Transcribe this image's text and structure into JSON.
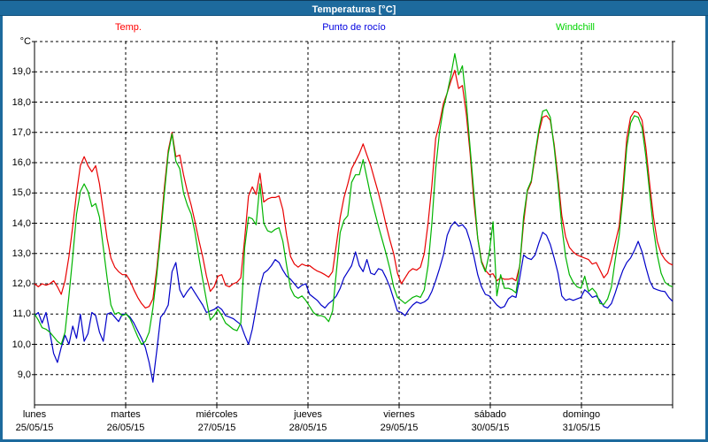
{
  "window": {
    "title": "Temperaturas [°C]"
  },
  "colors": {
    "frame": "#1d6a9d",
    "title_text": "#ffffff",
    "background": "#ffffff",
    "grid": "#000000",
    "axis_text": "#000000"
  },
  "chart_data": {
    "type": "line",
    "title": "Temperaturas [°C]",
    "unit_label": "°C",
    "grid": "dashed",
    "legend_position": "top",
    "ylim": [
      8,
      20
    ],
    "yticks": [
      {
        "value": 19,
        "label": "19,0"
      },
      {
        "value": 18,
        "label": "18,0"
      },
      {
        "value": 17,
        "label": "17,0"
      },
      {
        "value": 16,
        "label": "16,0"
      },
      {
        "value": 15,
        "label": "15,0"
      },
      {
        "value": 14,
        "label": "14,0"
      },
      {
        "value": 13,
        "label": "13,0"
      },
      {
        "value": 12,
        "label": "12,0"
      },
      {
        "value": 11,
        "label": "11,0"
      },
      {
        "value": 10,
        "label": "10,0"
      },
      {
        "value": 9,
        "label": "9,0"
      }
    ],
    "x_labels": [
      {
        "day": "lunes",
        "date": "25/05/15"
      },
      {
        "day": "martes",
        "date": "26/05/15"
      },
      {
        "day": "miércoles",
        "date": "27/05/15"
      },
      {
        "day": "jueves",
        "date": "28/05/15"
      },
      {
        "day": "viernes",
        "date": "29/05/15"
      },
      {
        "day": "sábado",
        "date": "30/05/15"
      },
      {
        "day": "domingo",
        "date": "31/05/15"
      }
    ],
    "hours_per_point": 1,
    "series": [
      {
        "name": "Temp.",
        "color": "#e80000",
        "legend_color": "#ff0000",
        "values": [
          12.0,
          11.9,
          12.0,
          11.95,
          12.0,
          12.1,
          11.9,
          11.65,
          12.1,
          12.9,
          13.9,
          15.0,
          15.9,
          16.2,
          15.9,
          15.7,
          15.9,
          15.3,
          14.4,
          13.5,
          12.85,
          12.55,
          12.4,
          12.3,
          12.3,
          12.1,
          11.8,
          11.55,
          11.35,
          11.2,
          11.25,
          11.5,
          12.5,
          13.8,
          15.2,
          16.4,
          17.0,
          16.2,
          16.25,
          15.6,
          15.05,
          14.6,
          14.05,
          13.45,
          12.9,
          12.25,
          11.75,
          11.9,
          12.25,
          12.3,
          11.95,
          11.9,
          12.0,
          12.05,
          12.2,
          13.5,
          14.9,
          15.2,
          14.95,
          15.65,
          14.7,
          14.8,
          14.85,
          14.85,
          14.9,
          14.45,
          13.6,
          12.9,
          12.65,
          12.55,
          12.65,
          12.6,
          12.6,
          12.5,
          12.42,
          12.37,
          12.3,
          12.22,
          12.4,
          13.3,
          14.2,
          14.85,
          15.3,
          15.8,
          16.05,
          16.3,
          16.62,
          16.25,
          15.9,
          15.45,
          15.0,
          14.5,
          13.95,
          13.45,
          13.0,
          12.35,
          12.0,
          12.2,
          12.4,
          12.5,
          12.45,
          12.55,
          13.0,
          14.0,
          15.25,
          16.8,
          17.3,
          17.95,
          18.3,
          18.7,
          19.05,
          18.45,
          18.55,
          17.6,
          16.3,
          14.7,
          13.5,
          12.75,
          12.45,
          12.3,
          12.33,
          12.1,
          12.2,
          12.15,
          12.15,
          12.18,
          12.1,
          12.6,
          14.0,
          15.05,
          15.35,
          16.2,
          17.0,
          17.5,
          17.55,
          17.4,
          16.6,
          15.5,
          14.25,
          13.55,
          13.2,
          13.05,
          12.95,
          12.9,
          12.85,
          12.8,
          12.65,
          12.7,
          12.45,
          12.2,
          12.35,
          12.8,
          13.35,
          13.9,
          15.2,
          16.8,
          17.5,
          17.7,
          17.65,
          17.4,
          16.5,
          15.3,
          14.2,
          13.4,
          13.0,
          12.8,
          12.68,
          12.62
        ]
      },
      {
        "name": "Punto de rocío",
        "color": "#0000c8",
        "legend_color": "#0000e0",
        "values": [
          10.95,
          11.05,
          10.7,
          11.05,
          10.4,
          9.7,
          9.4,
          9.9,
          10.3,
          10.0,
          10.6,
          10.2,
          11.0,
          10.1,
          10.35,
          11.05,
          10.95,
          10.4,
          10.1,
          11.0,
          11.05,
          10.9,
          10.75,
          11.0,
          11.0,
          10.9,
          10.7,
          10.45,
          10.2,
          9.9,
          9.4,
          8.75,
          9.8,
          10.9,
          11.05,
          11.3,
          12.4,
          12.7,
          11.8,
          11.55,
          11.75,
          11.9,
          11.7,
          11.5,
          11.3,
          11.05,
          11.1,
          11.15,
          11.25,
          11.15,
          10.95,
          10.9,
          10.85,
          10.75,
          10.65,
          10.3,
          10.0,
          10.5,
          11.2,
          11.9,
          12.35,
          12.45,
          12.6,
          12.8,
          12.7,
          12.45,
          12.25,
          12.15,
          12.0,
          11.85,
          11.95,
          12.0,
          11.65,
          11.55,
          11.45,
          11.3,
          11.2,
          11.35,
          11.45,
          11.6,
          11.85,
          12.2,
          12.4,
          12.6,
          13.05,
          12.6,
          12.4,
          12.8,
          12.35,
          12.3,
          12.5,
          12.45,
          12.2,
          11.9,
          11.5,
          11.1,
          11.05,
          10.95,
          11.15,
          11.3,
          11.4,
          11.35,
          11.4,
          11.5,
          11.75,
          12.1,
          12.5,
          12.95,
          13.6,
          13.9,
          14.05,
          13.9,
          13.95,
          13.8,
          13.4,
          12.9,
          12.3,
          11.9,
          11.65,
          11.6,
          11.45,
          11.3,
          11.2,
          11.25,
          11.5,
          11.6,
          11.55,
          12.2,
          12.95,
          12.85,
          12.8,
          12.95,
          13.35,
          13.7,
          13.6,
          13.3,
          12.85,
          12.35,
          11.6,
          11.45,
          11.5,
          11.45,
          11.5,
          11.55,
          11.8,
          11.7,
          11.55,
          11.6,
          11.45,
          11.25,
          11.2,
          11.35,
          11.7,
          12.1,
          12.45,
          12.7,
          12.85,
          13.1,
          13.4,
          13.05,
          12.55,
          12.1,
          11.85,
          11.8,
          11.76,
          11.74,
          11.55,
          11.42
        ]
      },
      {
        "name": "Windchill",
        "color": "#00b400",
        "legend_color": "#00d400",
        "values": [
          11.0,
          10.8,
          10.55,
          10.5,
          10.4,
          10.25,
          10.1,
          10.0,
          10.4,
          11.6,
          12.9,
          14.3,
          15.05,
          15.3,
          15.05,
          14.55,
          14.65,
          14.2,
          13.2,
          12.2,
          11.3,
          11.0,
          11.05,
          10.95,
          11.0,
          10.85,
          10.55,
          10.25,
          10.0,
          10.1,
          10.4,
          11.2,
          12.3,
          13.6,
          15.0,
          16.3,
          16.95,
          16.05,
          15.8,
          15.0,
          14.6,
          14.3,
          13.7,
          12.9,
          12.15,
          11.45,
          10.8,
          10.95,
          11.15,
          10.95,
          10.7,
          10.6,
          10.5,
          10.45,
          10.7,
          13.2,
          14.2,
          14.15,
          13.95,
          15.3,
          14.0,
          13.75,
          13.7,
          13.8,
          13.85,
          13.4,
          12.6,
          11.85,
          11.6,
          11.52,
          11.6,
          11.45,
          11.25,
          11.05,
          10.95,
          10.95,
          10.9,
          10.75,
          11.1,
          12.4,
          13.7,
          14.1,
          14.25,
          15.35,
          15.6,
          15.6,
          16.1,
          15.5,
          14.9,
          14.4,
          13.9,
          13.45,
          13.0,
          12.5,
          11.9,
          11.55,
          11.45,
          11.35,
          11.45,
          11.55,
          11.6,
          11.55,
          11.8,
          12.6,
          14.0,
          15.8,
          17.0,
          17.8,
          18.3,
          18.9,
          19.6,
          18.9,
          19.2,
          18.0,
          16.5,
          15.0,
          13.5,
          12.7,
          12.4,
          13.0,
          14.05,
          11.6,
          12.3,
          11.85,
          11.85,
          11.8,
          11.7,
          12.6,
          14.2,
          15.1,
          15.4,
          16.3,
          17.1,
          17.7,
          17.75,
          17.5,
          16.5,
          15.3,
          13.9,
          12.9,
          12.3,
          12.05,
          11.9,
          11.85,
          12.25,
          11.75,
          11.85,
          11.7,
          11.35,
          11.32,
          11.5,
          11.9,
          12.8,
          13.6,
          14.9,
          16.5,
          17.3,
          17.55,
          17.5,
          17.15,
          16.2,
          15.0,
          13.8,
          12.95,
          12.35,
          12.05,
          11.95,
          11.9
        ]
      }
    ]
  }
}
